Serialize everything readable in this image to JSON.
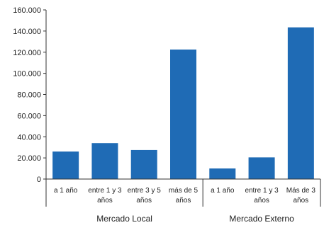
{
  "chart_data": {
    "type": "bar",
    "title": "",
    "xlabel": "",
    "ylabel": "",
    "ylim": [
      0,
      160000
    ],
    "yticks": [
      0,
      20000,
      40000,
      60000,
      80000,
      100000,
      120000,
      140000,
      160000
    ],
    "ytick_labels": [
      "0",
      "20.000",
      "40.000",
      "60.000",
      "80.000",
      "100.000",
      "120.000",
      "140.000",
      "160.000"
    ],
    "grid": false,
    "bar_color": "#1f6bb5",
    "categories": [
      [
        "a 1 año"
      ],
      [
        "entre 1 y 3",
        "años"
      ],
      [
        "entre 3 y 5",
        "años"
      ],
      [
        "más de 5",
        "años"
      ],
      [
        "a 1 año"
      ],
      [
        "entre 1 y 3",
        "años"
      ],
      [
        "Más de 3",
        "años"
      ]
    ],
    "values": [
      26000,
      34000,
      27500,
      122500,
      10000,
      20500,
      143500
    ],
    "groups": [
      {
        "label": "Mercado Local",
        "start": 0,
        "end": 3
      },
      {
        "label": "Mercado Externo",
        "start": 4,
        "end": 6
      }
    ]
  }
}
